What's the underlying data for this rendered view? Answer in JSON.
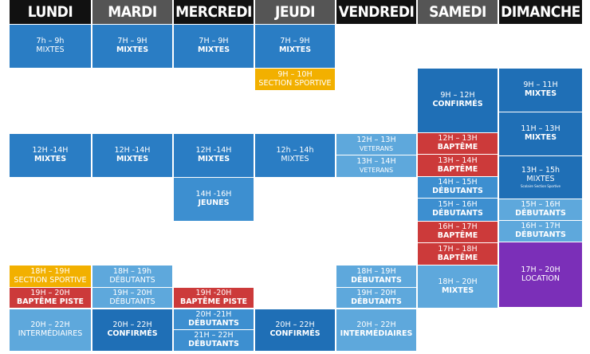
{
  "days": [
    "LUNDI",
    "MARDI",
    "MERCREDI",
    "JEUDI",
    "VENDREDI",
    "SAMEDI",
    "DIMANCHE"
  ],
  "cells": {
    "lun_7": {
      "time": "7h – 9h",
      "label": "MIXTES"
    },
    "mar_7": {
      "time": "7H – 9H",
      "label": "MIXTES"
    },
    "mer_7": {
      "time": "7H – 9H",
      "label": "MIXTES"
    },
    "jeu_7": {
      "time": "7H – 9H",
      "label": "MIXTES"
    },
    "jeu_9": {
      "time": "9H – 10H",
      "label": "SECTION SPORTIVE"
    },
    "sam_9": {
      "time": "9H – 12H",
      "label": "CONFIRMÉS"
    },
    "dim_9": {
      "time": "9H – 11H",
      "label": "MIXTES"
    },
    "dim_11": {
      "time": "11H – 13H",
      "label": "MIXTES"
    },
    "lun_12": {
      "time": "12H -14H",
      "label": "MIXTES"
    },
    "mar_12": {
      "time": "12H -14H",
      "label": "MIXTES"
    },
    "mer_12": {
      "time": "12H -14H",
      "label": "MIXTES"
    },
    "jeu_12": {
      "time": "12h – 14h",
      "label": "MIXTES"
    },
    "ven_12": {
      "time": "12H – 13H",
      "label": "VETERANS"
    },
    "ven_13": {
      "time": "13H – 14H",
      "label": "VETERANS"
    },
    "sam_12": {
      "time": "12H – 13H",
      "label": "BAPTÊME"
    },
    "sam_13": {
      "time": "13H – 14H",
      "label": "BAPTÊME"
    },
    "dim_13": {
      "time": "13H – 15h",
      "label": "MIXTES",
      "note": "Scolaire",
      "note2": "Section Sportive"
    },
    "mer_14": {
      "time": "14H -16H",
      "label": "JEUNES"
    },
    "sam_14": {
      "time": "14H – 15H",
      "label": "DÉBUTANTS"
    },
    "sam_15": {
      "time": "15H – 16H",
      "label": "DÉBUTANTS"
    },
    "dim_15": {
      "time": "15H – 16H",
      "label": "DÉBUTANTS"
    },
    "dim_16": {
      "time": "16H – 17H",
      "label": "DÉBUTANTS"
    },
    "sam_16": {
      "time": "16H – 17H",
      "label": "BAPTÊME"
    },
    "sam_17": {
      "time": "17H – 18H",
      "label": "BAPTÊME"
    },
    "dim_17": {
      "time": "17H – 20H",
      "label": "LOCATION"
    },
    "lun_18": {
      "time": "18H – 19H",
      "label": "SECTION SPORTIVE"
    },
    "lun_19": {
      "time": "19H – 20H",
      "label": "BAPTÊME PISTE"
    },
    "mar_18": {
      "time": "18H – 19h",
      "label": "DÉBUTANTS"
    },
    "mar_19": {
      "time": "19H – 20H",
      "label": "DÉBUTANTS"
    },
    "mer_19": {
      "time": "19H -20H",
      "label": "BAPTÊME PISTE"
    },
    "ven_18": {
      "time": "18H – 19H",
      "label": "DÉBUTANTS"
    },
    "ven_19": {
      "time": "19H – 20H",
      "label": "DÉBUTANTS"
    },
    "sam_18": {
      "time": "18H – 20H",
      "label": "MIXTES"
    },
    "lun_20": {
      "time": "20H – 22H",
      "label": "INTERMÉDIAIRES"
    },
    "mar_20": {
      "time": "20H – 22H",
      "label": "CONFIRMÉS"
    },
    "mer_20": {
      "time": "20H -21H",
      "label": "DÉBUTANTS"
    },
    "mer_21": {
      "time": "21H – 22H",
      "label": "DÉBUTANTS"
    },
    "jeu_20": {
      "time": "20H – 22H",
      "label": "CONFIRMÉS"
    },
    "ven_20": {
      "time": "20H – 22H",
      "label": "INTERMÉDIAIRES"
    }
  },
  "colors": {
    "blue": "#2a7dc4",
    "light_blue": "#5ea8dc",
    "orange": "#f2b000",
    "red": "#cc3a3a",
    "purple": "#7b2fb8",
    "header_dark": "#111111",
    "header_gray": "#555555"
  }
}
